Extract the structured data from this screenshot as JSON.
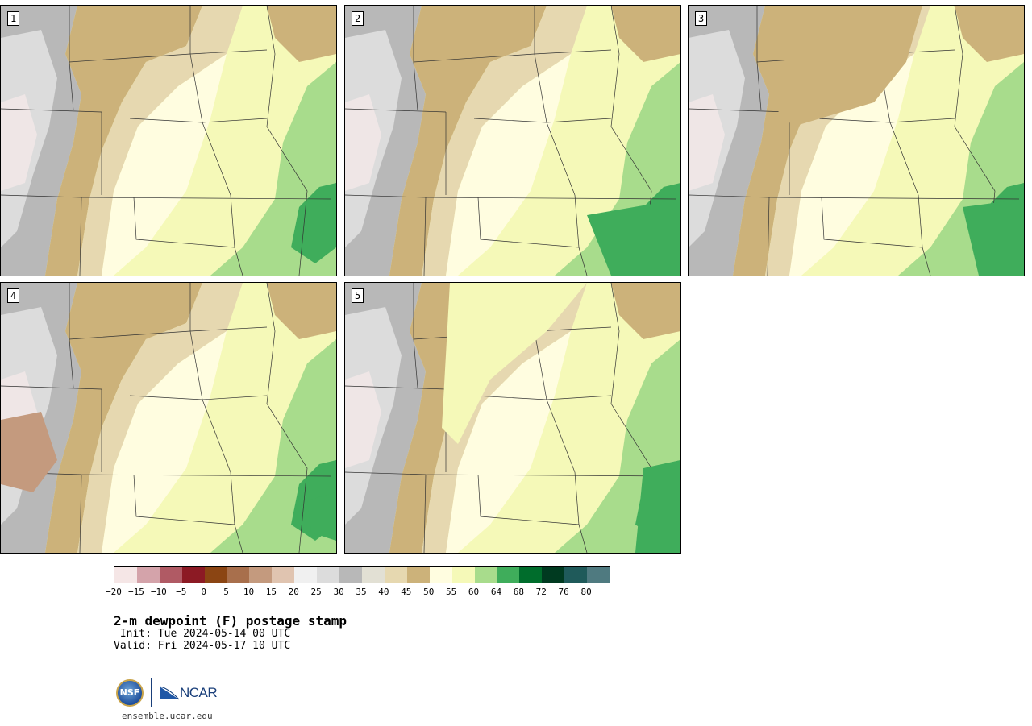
{
  "panels": [
    {
      "label": "1"
    },
    {
      "label": "2"
    },
    {
      "label": "3"
    },
    {
      "label": "4"
    },
    {
      "label": "5"
    }
  ],
  "colorbar": {
    "colors": [
      "#f5e6e6",
      "#d4a3aa",
      "#b05a64",
      "#8c1a24",
      "#8b4513",
      "#a86f4c",
      "#c49a7e",
      "#e0c4b0",
      "#f0f0f0",
      "#dcdcdc",
      "#b8b8b8",
      "#e2e0d4",
      "#e6d8b0",
      "#ccb27a",
      "#fffde0",
      "#f5f9b8",
      "#a8dc8c",
      "#3fad5b",
      "#006d2c",
      "#003a20",
      "#1f5a5a",
      "#4f7a80"
    ],
    "ticks": [
      "−20",
      "−15",
      "−10",
      "−5",
      "0",
      "5",
      "10",
      "15",
      "20",
      "25",
      "30",
      "35",
      "40",
      "45",
      "50",
      "55",
      "60",
      "64",
      "68",
      "72",
      "76",
      "80"
    ]
  },
  "title": "2-m dewpoint (F) postage stamp",
  "init": " Init: Tue 2024-05-14 00 UTC",
  "valid": "Valid: Fri 2024-05-17 10 UTC",
  "logo": {
    "nsf": "NSF",
    "ncar": "NCAR"
  },
  "url": "ensemble.ucar.edu"
}
